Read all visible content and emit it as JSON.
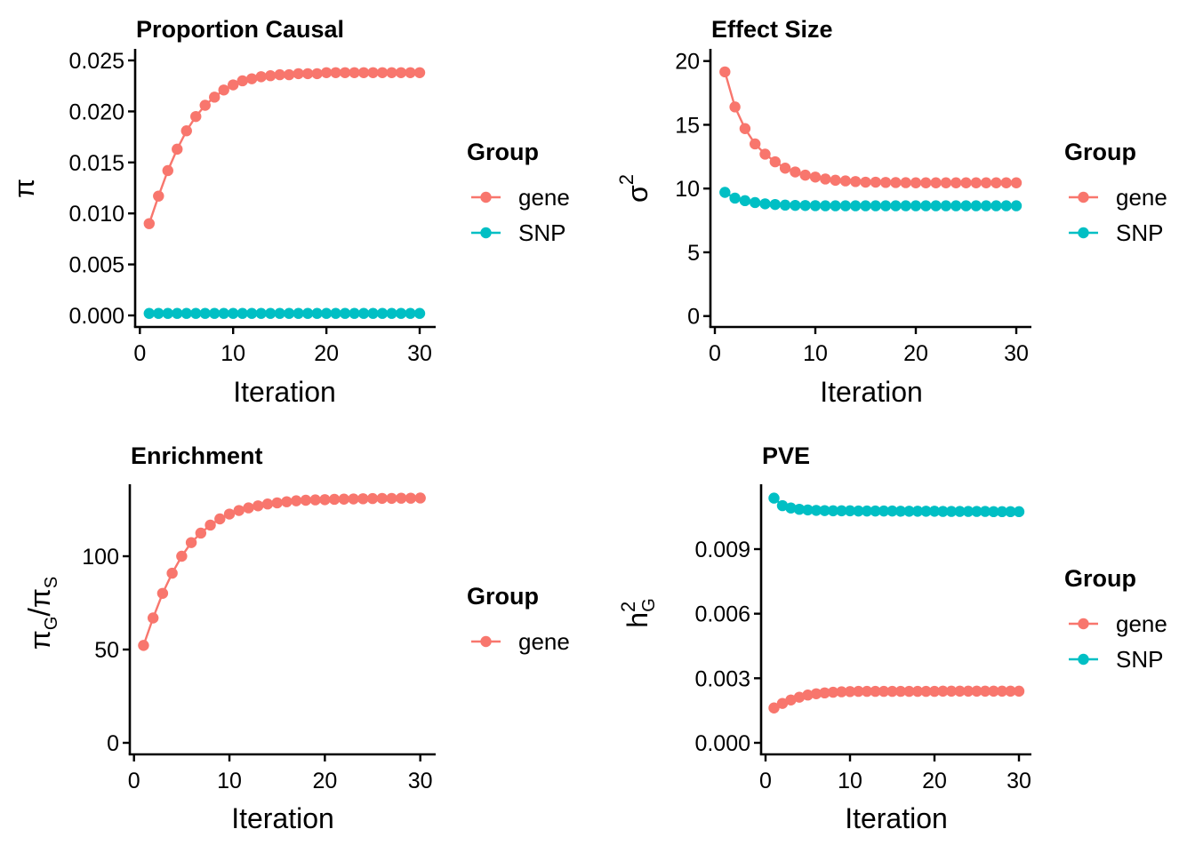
{
  "colors": {
    "gene": "#F8766D",
    "SNP": "#00BFC4"
  },
  "chart_data": [
    {
      "id": "proportion-causal",
      "type": "line",
      "title": "Proportion Causal",
      "xlabel": "Iteration",
      "ylabel": "π",
      "xlim": [
        0,
        30
      ],
      "ylim": [
        0,
        0.025
      ],
      "xticks": [
        0,
        10,
        20,
        30
      ],
      "yticks": [
        0,
        0.005,
        0.01,
        0.015,
        0.02,
        0.025
      ],
      "ytick_labels": [
        "0.000",
        "0.005",
        "0.010",
        "0.015",
        "0.020",
        "0.025"
      ],
      "grid": false,
      "legend": {
        "title": "Group",
        "position": "right",
        "entries": [
          "gene",
          "SNP"
        ]
      },
      "x": [
        1,
        2,
        3,
        4,
        5,
        6,
        7,
        8,
        9,
        10,
        11,
        12,
        13,
        14,
        15,
        16,
        17,
        18,
        19,
        20,
        21,
        22,
        23,
        24,
        25,
        26,
        27,
        28,
        29,
        30
      ],
      "series": [
        {
          "name": "gene",
          "values": [
            0.009,
            0.0117,
            0.0142,
            0.0163,
            0.0181,
            0.0195,
            0.0206,
            0.0214,
            0.0221,
            0.0226,
            0.023,
            0.0232,
            0.0234,
            0.0235,
            0.0236,
            0.0236,
            0.0237,
            0.0237,
            0.0237,
            0.0238,
            0.0238,
            0.0238,
            0.0238,
            0.0238,
            0.0238,
            0.0238,
            0.0238,
            0.0238,
            0.0238,
            0.0238
          ]
        },
        {
          "name": "SNP",
          "values": [
            0.0002,
            0.0002,
            0.0002,
            0.0002,
            0.0002,
            0.0002,
            0.0002,
            0.0002,
            0.0002,
            0.0002,
            0.0002,
            0.0002,
            0.0002,
            0.0002,
            0.0002,
            0.0002,
            0.0002,
            0.0002,
            0.0002,
            0.0002,
            0.0002,
            0.0002,
            0.0002,
            0.0002,
            0.0002,
            0.0002,
            0.0002,
            0.0002,
            0.0002,
            0.0002
          ]
        }
      ]
    },
    {
      "id": "effect-size",
      "type": "line",
      "title": "Effect Size",
      "xlabel": "Iteration",
      "ylabel": "σ²",
      "xlim": [
        0,
        30
      ],
      "ylim": [
        0,
        20
      ],
      "xticks": [
        0,
        10,
        20,
        30
      ],
      "yticks": [
        0,
        5,
        10,
        15,
        20
      ],
      "ytick_labels": [
        "0",
        "5",
        "10",
        "15",
        "20"
      ],
      "grid": false,
      "legend": {
        "title": "Group",
        "position": "right",
        "entries": [
          "gene",
          "SNP"
        ]
      },
      "x": [
        1,
        2,
        3,
        4,
        5,
        6,
        7,
        8,
        9,
        10,
        11,
        12,
        13,
        14,
        15,
        16,
        17,
        18,
        19,
        20,
        21,
        22,
        23,
        24,
        25,
        26,
        27,
        28,
        29,
        30
      ],
      "series": [
        {
          "name": "gene",
          "values": [
            19.15,
            16.4,
            14.7,
            13.5,
            12.7,
            12.1,
            11.6,
            11.3,
            11.05,
            10.9,
            10.75,
            10.65,
            10.6,
            10.55,
            10.5,
            10.5,
            10.48,
            10.47,
            10.46,
            10.45,
            10.45,
            10.45,
            10.45,
            10.45,
            10.45,
            10.45,
            10.45,
            10.45,
            10.45,
            10.45
          ]
        },
        {
          "name": "SNP",
          "values": [
            9.7,
            9.25,
            9.05,
            8.9,
            8.8,
            8.75,
            8.7,
            8.68,
            8.67,
            8.66,
            8.65,
            8.65,
            8.65,
            8.65,
            8.65,
            8.65,
            8.65,
            8.65,
            8.65,
            8.65,
            8.65,
            8.65,
            8.65,
            8.65,
            8.65,
            8.65,
            8.65,
            8.65,
            8.65,
            8.65
          ]
        }
      ]
    },
    {
      "id": "enrichment",
      "type": "line",
      "title": "Enrichment",
      "xlabel": "Iteration",
      "ylabel": "πG/πS",
      "xlim": [
        0,
        30
      ],
      "ylim": [
        0,
        131
      ],
      "xticks": [
        0,
        10,
        20,
        30
      ],
      "yticks": [
        0,
        50,
        100
      ],
      "ytick_labels": [
        "0",
        "50",
        "100"
      ],
      "grid": false,
      "legend": {
        "title": "Group",
        "position": "right",
        "entries": [
          "gene"
        ]
      },
      "x": [
        1,
        2,
        3,
        4,
        5,
        6,
        7,
        8,
        9,
        10,
        11,
        12,
        13,
        14,
        15,
        16,
        17,
        18,
        19,
        20,
        21,
        22,
        23,
        24,
        25,
        26,
        27,
        28,
        29,
        30
      ],
      "series": [
        {
          "name": "gene",
          "values": [
            52.2,
            66.9,
            80.1,
            90.9,
            100.0,
            107.3,
            112.4,
            116.7,
            120.0,
            122.6,
            124.5,
            125.9,
            127.0,
            128.0,
            128.6,
            129.2,
            129.7,
            130.0,
            130.2,
            130.3,
            130.5,
            130.6,
            130.7,
            130.8,
            130.9,
            131.0,
            131.0,
            131.1,
            131.1,
            131.2
          ]
        }
      ]
    },
    {
      "id": "pve",
      "type": "line",
      "title": "PVE",
      "xlabel": "Iteration",
      "ylabel": "h²G",
      "xlim": [
        0,
        30
      ],
      "ylim": [
        0,
        0.0114
      ],
      "xticks": [
        0,
        10,
        20,
        30
      ],
      "yticks": [
        0,
        0.003,
        0.006,
        0.009
      ],
      "ytick_labels": [
        "0.000",
        "0.003",
        "0.006",
        "0.009"
      ],
      "grid": false,
      "legend": {
        "title": "Group",
        "position": "right",
        "entries": [
          "gene",
          "SNP"
        ]
      },
      "x": [
        1,
        2,
        3,
        4,
        5,
        6,
        7,
        8,
        9,
        10,
        11,
        12,
        13,
        14,
        15,
        16,
        17,
        18,
        19,
        20,
        21,
        22,
        23,
        24,
        25,
        26,
        27,
        28,
        29,
        30
      ],
      "series": [
        {
          "name": "gene",
          "values": [
            0.00162,
            0.00183,
            0.00199,
            0.00212,
            0.00222,
            0.00228,
            0.00232,
            0.00235,
            0.00237,
            0.00238,
            0.00239,
            0.00239,
            0.00239,
            0.00239,
            0.00239,
            0.00239,
            0.00239,
            0.00239,
            0.00239,
            0.00239,
            0.0024,
            0.0024,
            0.0024,
            0.0024,
            0.0024,
            0.0024,
            0.0024,
            0.0024,
            0.0024,
            0.0024
          ]
        },
        {
          "name": "SNP",
          "values": [
            0.01137,
            0.01102,
            0.01091,
            0.01085,
            0.01082,
            0.0108,
            0.01079,
            0.01078,
            0.01078,
            0.01078,
            0.01077,
            0.01077,
            0.01077,
            0.01077,
            0.01077,
            0.01076,
            0.01076,
            0.01076,
            0.01076,
            0.01076,
            0.01075,
            0.01075,
            0.01075,
            0.01075,
            0.01075,
            0.01075,
            0.01074,
            0.01074,
            0.01074,
            0.01074
          ]
        }
      ]
    }
  ]
}
